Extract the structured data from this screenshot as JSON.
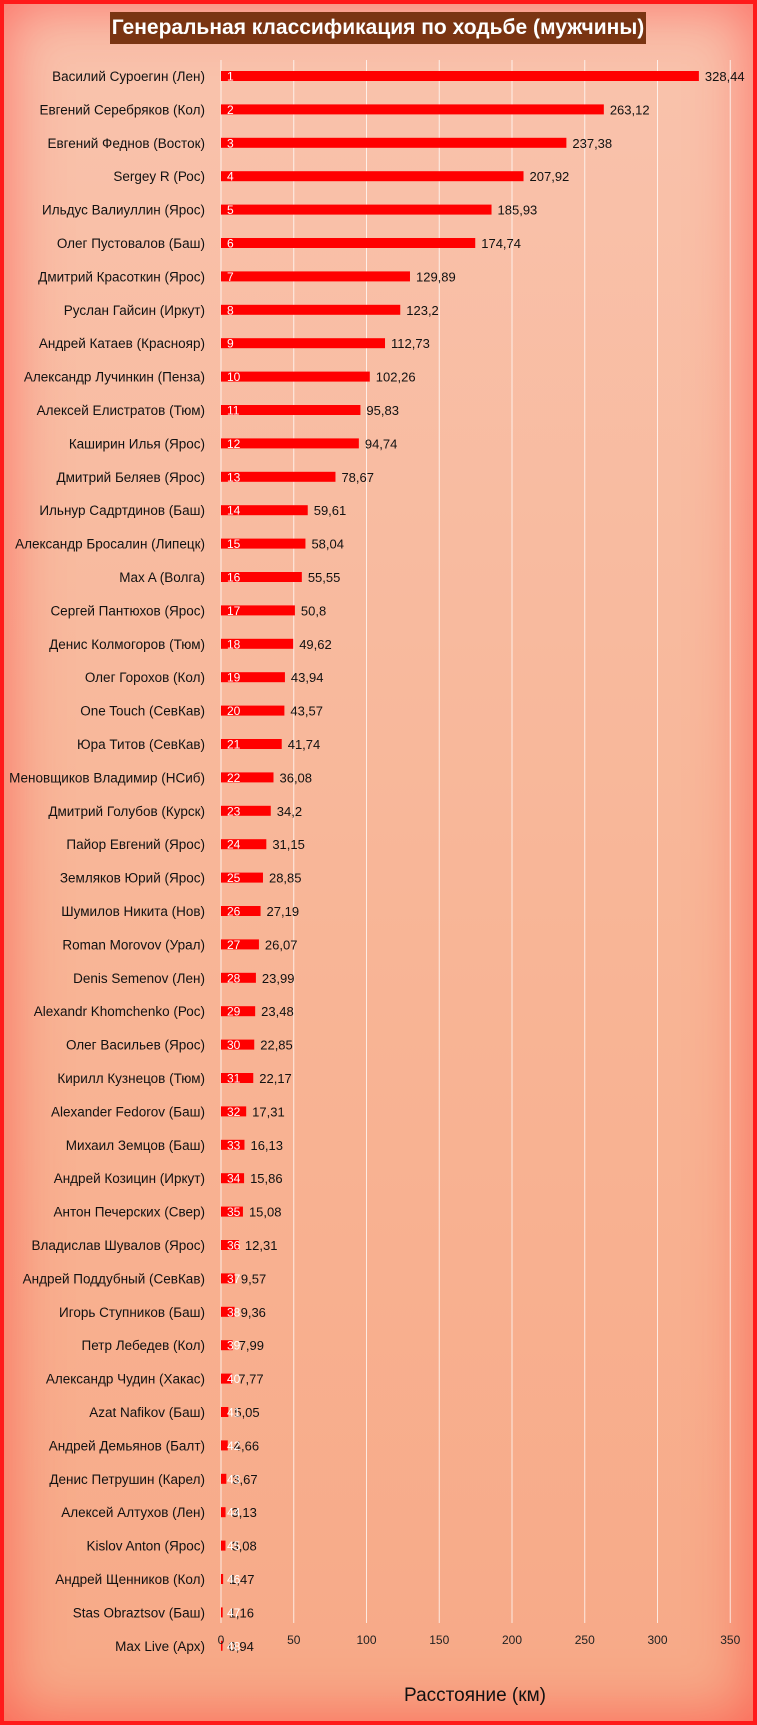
{
  "chart_data": {
    "type": "bar",
    "orientation": "horizontal",
    "title": "Генеральная классификация по ходьбе (мужчины)",
    "xlabel": "Расстояние (км)",
    "ylabel": "",
    "xlim": [
      0,
      350
    ],
    "xticks": [
      "0",
      "50",
      "100",
      "150",
      "200",
      "250",
      "300",
      "350"
    ],
    "grid": true,
    "legend": "none",
    "bar_color": "#ff0000",
    "categories": [
      "Василий Суроегин (Лен)",
      "Евгений Серебряков (Кол)",
      "Евгений Феднов (Восток)",
      "Sergey R (Рос)",
      "Ильдус Валиуллин (Ярос)",
      "Олег Пустовалов (Баш)",
      "Дмитрий Красоткин (Ярос)",
      "Руслан Гайсин (Иркут)",
      "Андрей Катаев (Краснояр)",
      "Александр Лучинкин (Пенза)",
      "Алексей Елистратов (Тюм)",
      "Каширин Илья (Ярос)",
      "Дмитрий Беляев (Ярос)",
      "Ильнур Садртдинов (Баш)",
      "Александр Бросалин (Липецк)",
      "Max A (Волга)",
      "Сергей Пантюхов (Ярос)",
      "Денис Колмогоров (Тюм)",
      "Олег Горохов (Кол)",
      "One Touch (СевКав)",
      "Юра Титов (СевКав)",
      "Меновщиков Владимир (НСиб)",
      "Дмитрий Голубов (Курск)",
      "Пайор Евгений (Ярос)",
      "Земляков Юрий (Ярос)",
      "Шумилов Никита (Нов)",
      "Roman Morovov (Урал)",
      "Denis Semenov (Лен)",
      "Alexandr Khomchenko (Рос)",
      "Олег Васильев (Ярос)",
      "Кирилл Кузнецов (Тюм)",
      "Alexander Fedorov (Баш)",
      "Михаил Земцов (Баш)",
      "Андрей Козицин (Иркут)",
      "Антон Печерских (Свер)",
      "Владислав Шувалов (Ярос)",
      "Андрей Поддубный (СевКав)",
      "Игорь Ступников (Баш)",
      "Петр Лебедев (Кол)",
      "Александр Чудин (Хакас)",
      "Azat Nafikov (Баш)",
      "Андрей Демьянов (Балт)",
      "Денис Петрушин (Карел)",
      "Алексей Алтухов (Лен)",
      "Kislov Anton (Ярос)",
      "Андрей Щенников (Кол)",
      "Stas Obraztsov (Баш)",
      "Max Live (Арх)"
    ],
    "ranks": [
      "1",
      "2",
      "3",
      "4",
      "5",
      "6",
      "7",
      "8",
      "9",
      "10",
      "11",
      "12",
      "13",
      "14",
      "15",
      "16",
      "17",
      "18",
      "19",
      "20",
      "21",
      "22",
      "23",
      "24",
      "25",
      "26",
      "27",
      "28",
      "29",
      "30",
      "31",
      "32",
      "33",
      "34",
      "35",
      "36",
      "37",
      "38",
      "39",
      "40",
      "41",
      "42",
      "43",
      "44",
      "45",
      "46",
      "47",
      "48"
    ],
    "value_labels": [
      "328,44",
      "263,12",
      "237,38",
      "207,92",
      "185,93",
      "174,74",
      "129,89",
      "123,2",
      "112,73",
      "102,26",
      "95,83",
      "94,74",
      "78,67",
      "59,61",
      "58,04",
      "55,55",
      "50,8",
      "49,62",
      "43,94",
      "43,57",
      "41,74",
      "36,08",
      "34,2",
      "31,15",
      "28,85",
      "27,19",
      "26,07",
      "23,99",
      "23,48",
      "22,85",
      "22,17",
      "17,31",
      "16,13",
      "15,86",
      "15,08",
      "12,31",
      "9,57",
      "9,36",
      "7,99",
      "7,77",
      "5,05",
      "4,66",
      "3,67",
      "3,13",
      "3,08",
      "1,47",
      "1,16",
      "0,94"
    ],
    "values": [
      328.44,
      263.12,
      237.38,
      207.92,
      185.93,
      174.74,
      129.89,
      123.2,
      112.73,
      102.26,
      95.83,
      94.74,
      78.67,
      59.61,
      58.04,
      55.55,
      50.8,
      49.62,
      43.94,
      43.57,
      41.74,
      36.08,
      34.2,
      31.15,
      28.85,
      27.19,
      26.07,
      23.99,
      23.48,
      22.85,
      22.17,
      17.31,
      16.13,
      15.86,
      15.08,
      12.31,
      9.57,
      9.36,
      7.99,
      7.77,
      5.05,
      4.66,
      3.67,
      3.13,
      3.08,
      1.47,
      1.16,
      0.94
    ]
  }
}
